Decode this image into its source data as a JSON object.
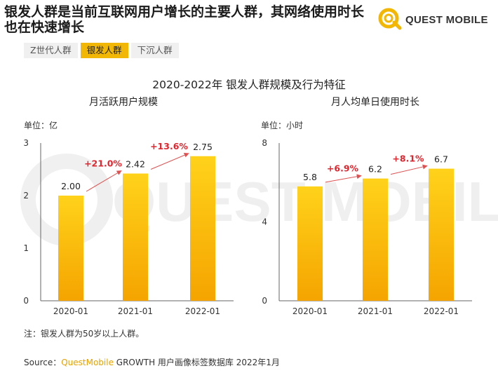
{
  "header": {
    "headline": "银发人群是当前互联网用户增长的主要人群，其网络使用时长也在快速增长",
    "logo_text": "QUEST MOBILE"
  },
  "tabs": [
    {
      "label": "Z世代人群",
      "active": false
    },
    {
      "label": "银发人群",
      "active": true
    },
    {
      "label": "下沉人群",
      "active": false
    }
  ],
  "main_title": "2020-2022年 银发人群规模及行为特征",
  "colors": {
    "bar_top": "#ffd21a",
    "bar_bottom": "#f5a400",
    "growth": "#e0262e",
    "arrow": "#e05050",
    "brand": "#e7a300",
    "tab_active": "#f2b705"
  },
  "chart_data": [
    {
      "type": "bar",
      "title": "月活跃用户规模",
      "unit_label": "单位：亿",
      "categories": [
        "2020-01",
        "2021-01",
        "2022-01"
      ],
      "values": [
        2.0,
        2.42,
        2.75
      ],
      "value_labels": [
        "2.00",
        "2.42",
        "2.75"
      ],
      "growth_labels": [
        "+21.0%",
        "+13.6%"
      ],
      "ylim": [
        0,
        3
      ],
      "yticks": [
        0,
        1,
        2,
        3
      ]
    },
    {
      "type": "bar",
      "title": "月人均单日使用时长",
      "unit_label": "单位：小时",
      "categories": [
        "2020-01",
        "2021-01",
        "2022-01"
      ],
      "values": [
        5.8,
        6.2,
        6.7
      ],
      "value_labels": [
        "5.8",
        "6.2",
        "6.7"
      ],
      "growth_labels": [
        "+6.9%",
        "+8.1%"
      ],
      "ylim": [
        0,
        8
      ],
      "yticks": [
        0,
        4,
        8
      ]
    }
  ],
  "footer": {
    "note": "注：银发人群为50岁以上人群。",
    "source_prefix": "Source：",
    "source_brand": "QuestMobile",
    "source_rest": " GROWTH 用户画像标签数据库 2022年1月"
  }
}
